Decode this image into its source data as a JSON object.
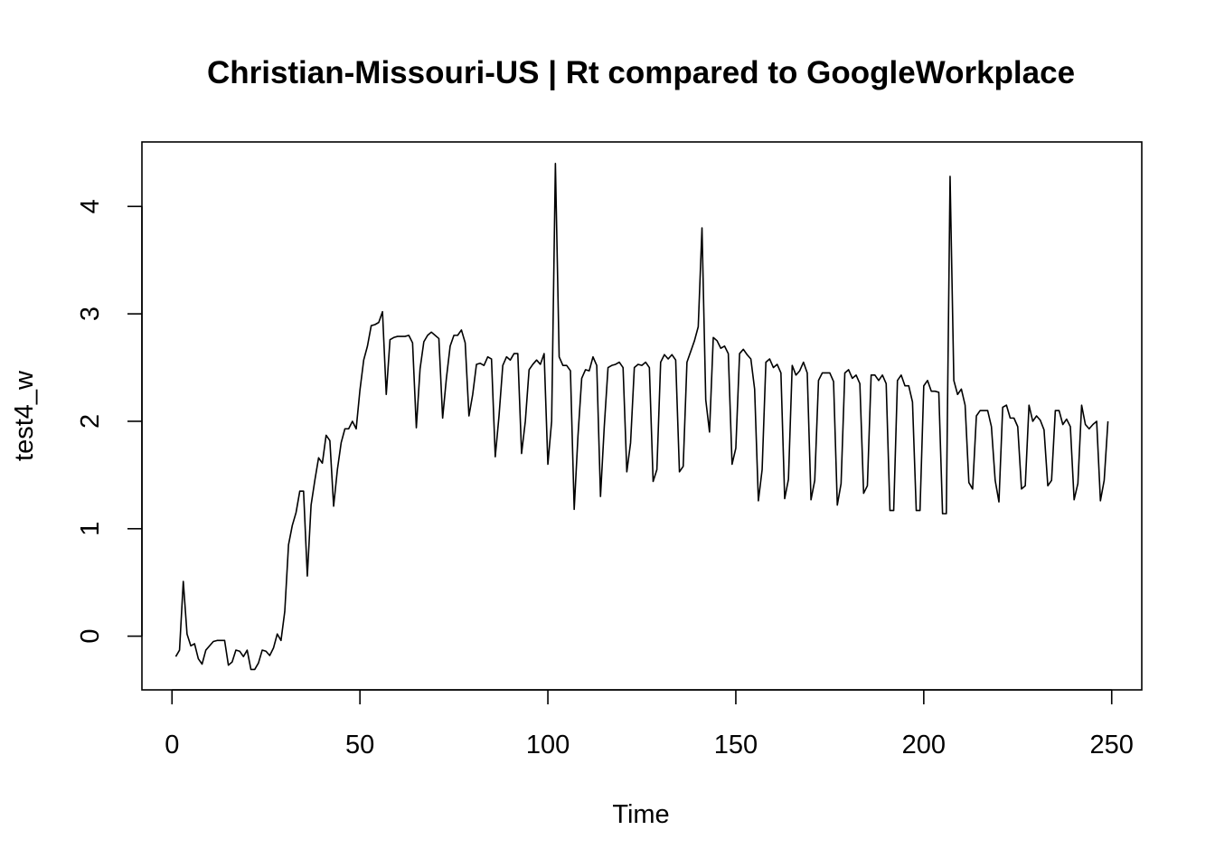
{
  "chart_data": {
    "type": "line",
    "title": "Christian-Missouri-US | Rt compared to GoogleWorkplace",
    "xlabel": "Time",
    "ylabel": "test4_w",
    "xlim": [
      -8,
      258
    ],
    "ylim": [
      -0.5,
      4.6
    ],
    "x_ticks": [
      0,
      50,
      100,
      150,
      200,
      250
    ],
    "y_ticks": [
      0,
      1,
      2,
      3,
      4
    ],
    "grid": false,
    "line_color": "#000000",
    "x_start": 1,
    "values": [
      -0.19,
      -0.13,
      0.51,
      0.02,
      -0.09,
      -0.07,
      -0.21,
      -0.26,
      -0.13,
      -0.09,
      -0.05,
      -0.04,
      -0.04,
      -0.04,
      -0.27,
      -0.24,
      -0.13,
      -0.14,
      -0.19,
      -0.13,
      -0.31,
      -0.31,
      -0.25,
      -0.13,
      -0.14,
      -0.18,
      -0.11,
      0.02,
      -0.04,
      0.23,
      0.85,
      1.03,
      1.15,
      1.35,
      1.35,
      0.56,
      1.22,
      1.45,
      1.66,
      1.61,
      1.87,
      1.82,
      1.21,
      1.55,
      1.8,
      1.93,
      1.93,
      2.0,
      1.93,
      2.29,
      2.57,
      2.7,
      2.89,
      2.9,
      2.92,
      3.02,
      2.25,
      2.76,
      2.78,
      2.79,
      2.79,
      2.79,
      2.8,
      2.73,
      1.94,
      2.49,
      2.74,
      2.8,
      2.83,
      2.8,
      2.77,
      2.03,
      2.4,
      2.7,
      2.8,
      2.8,
      2.85,
      2.73,
      2.05,
      2.25,
      2.53,
      2.54,
      2.52,
      2.6,
      2.58,
      1.67,
      2.05,
      2.52,
      2.6,
      2.57,
      2.63,
      2.63,
      1.7,
      2.0,
      2.48,
      2.53,
      2.57,
      2.53,
      2.63,
      1.6,
      2.0,
      4.4,
      2.6,
      2.52,
      2.52,
      2.47,
      1.18,
      1.86,
      2.4,
      2.48,
      2.47,
      2.6,
      2.52,
      1.3,
      1.95,
      2.5,
      2.52,
      2.53,
      2.55,
      2.5,
      1.53,
      1.8,
      2.5,
      2.53,
      2.52,
      2.55,
      2.5,
      1.44,
      1.55,
      2.55,
      2.62,
      2.58,
      2.62,
      2.57,
      1.53,
      1.58,
      2.55,
      2.65,
      2.75,
      2.88,
      3.8,
      2.2,
      1.9,
      2.78,
      2.75,
      2.68,
      2.7,
      2.63,
      1.6,
      1.75,
      2.63,
      2.67,
      2.62,
      2.58,
      2.3,
      1.26,
      1.55,
      2.55,
      2.58,
      2.5,
      2.53,
      2.45,
      1.28,
      1.46,
      2.52,
      2.43,
      2.47,
      2.55,
      2.45,
      1.27,
      1.45,
      2.38,
      2.45,
      2.45,
      2.45,
      2.37,
      1.22,
      1.42,
      2.45,
      2.48,
      2.4,
      2.43,
      2.35,
      1.33,
      1.4,
      2.43,
      2.43,
      2.38,
      2.43,
      2.35,
      1.17,
      1.17,
      2.38,
      2.43,
      2.33,
      2.33,
      2.18,
      1.17,
      1.17,
      2.33,
      2.38,
      2.28,
      2.28,
      2.27,
      1.14,
      1.14,
      4.28,
      2.38,
      2.25,
      2.3,
      2.15,
      1.43,
      1.37,
      2.05,
      2.1,
      2.1,
      2.1,
      1.95,
      1.45,
      1.25,
      2.13,
      2.15,
      2.03,
      2.03,
      1.95,
      1.37,
      1.4,
      2.15,
      2.0,
      2.05,
      2.01,
      1.92,
      1.4,
      1.45,
      2.1,
      2.1,
      1.97,
      2.02,
      1.95,
      1.27,
      1.42,
      2.15,
      1.97,
      1.93,
      1.97,
      2.0,
      1.26,
      1.45,
      2.0
    ]
  }
}
